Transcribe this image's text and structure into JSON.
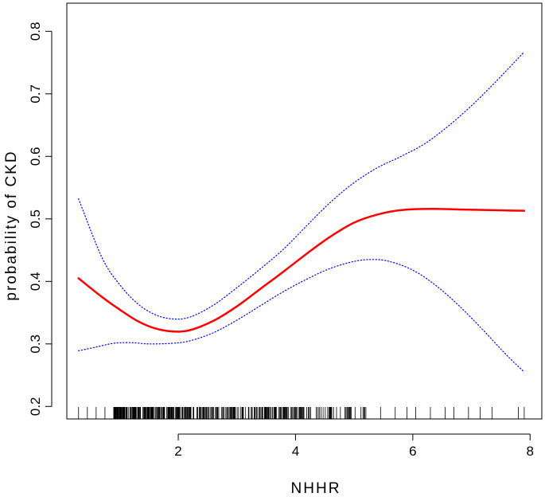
{
  "chart_data": {
    "type": "line",
    "title": "",
    "xlabel": "NHHR",
    "ylabel": "probability of CKD",
    "xlim": [
      0.1,
      8.2
    ],
    "ylim": [
      0.18,
      0.845
    ],
    "x_ticks": [
      2,
      4,
      6,
      8
    ],
    "y_ticks": [
      0.2,
      0.3,
      0.4,
      0.5,
      0.6,
      0.7,
      0.8
    ],
    "x_tick_labels": [
      "2",
      "4",
      "6",
      "8"
    ],
    "y_tick_labels": [
      "0.2",
      "0.3",
      "0.4",
      "0.5",
      "0.6",
      "0.7",
      "0.8"
    ],
    "grid": false,
    "legend": "none",
    "colors": {
      "fit": "#ff0000",
      "ci": "#0000ff",
      "rug": "#000000",
      "frame": "#000000"
    },
    "series": [
      {
        "role": "fit",
        "style": "solid",
        "x": [
          0.3,
          0.7,
          1.0,
          1.3,
          1.6,
          1.9,
          2.2,
          2.6,
          3.0,
          3.4,
          3.8,
          4.2,
          4.6,
          5.0,
          5.4,
          5.8,
          6.3,
          6.8,
          7.3,
          7.9
        ],
        "y": [
          0.405,
          0.375,
          0.355,
          0.337,
          0.325,
          0.32,
          0.322,
          0.337,
          0.36,
          0.388,
          0.416,
          0.445,
          0.472,
          0.494,
          0.507,
          0.514,
          0.516,
          0.515,
          0.514,
          0.513
        ]
      },
      {
        "role": "upper-ci",
        "style": "dotted",
        "x": [
          0.3,
          0.7,
          1.0,
          1.3,
          1.6,
          1.9,
          2.2,
          2.6,
          3.0,
          3.4,
          3.8,
          4.2,
          4.6,
          5.0,
          5.4,
          5.8,
          6.2,
          6.6,
          7.0,
          7.4,
          7.9
        ],
        "y": [
          0.532,
          0.438,
          0.395,
          0.365,
          0.347,
          0.34,
          0.343,
          0.362,
          0.39,
          0.42,
          0.452,
          0.49,
          0.527,
          0.558,
          0.582,
          0.6,
          0.62,
          0.648,
          0.681,
          0.718,
          0.767
        ]
      },
      {
        "role": "lower-ci",
        "style": "dotted",
        "x": [
          0.3,
          0.6,
          0.9,
          1.2,
          1.5,
          1.9,
          2.2,
          2.6,
          3.0,
          3.4,
          3.8,
          4.2,
          4.6,
          5.0,
          5.3,
          5.6,
          6.0,
          6.4,
          6.8,
          7.2,
          7.6,
          7.9
        ],
        "y": [
          0.289,
          0.295,
          0.301,
          0.302,
          0.3,
          0.301,
          0.305,
          0.318,
          0.338,
          0.361,
          0.384,
          0.404,
          0.421,
          0.432,
          0.435,
          0.432,
          0.418,
          0.393,
          0.36,
          0.322,
          0.282,
          0.255
        ]
      }
    ],
    "rug": {
      "x_range": [
        0.3,
        7.9
      ],
      "dense_range": [
        0.9,
        4.2
      ],
      "count": 360,
      "outliers": [
        5.2,
        5.45,
        5.7,
        5.9,
        6.05,
        6.3,
        6.55,
        6.7,
        6.95,
        7.15,
        7.35,
        7.8,
        7.9
      ]
    }
  }
}
